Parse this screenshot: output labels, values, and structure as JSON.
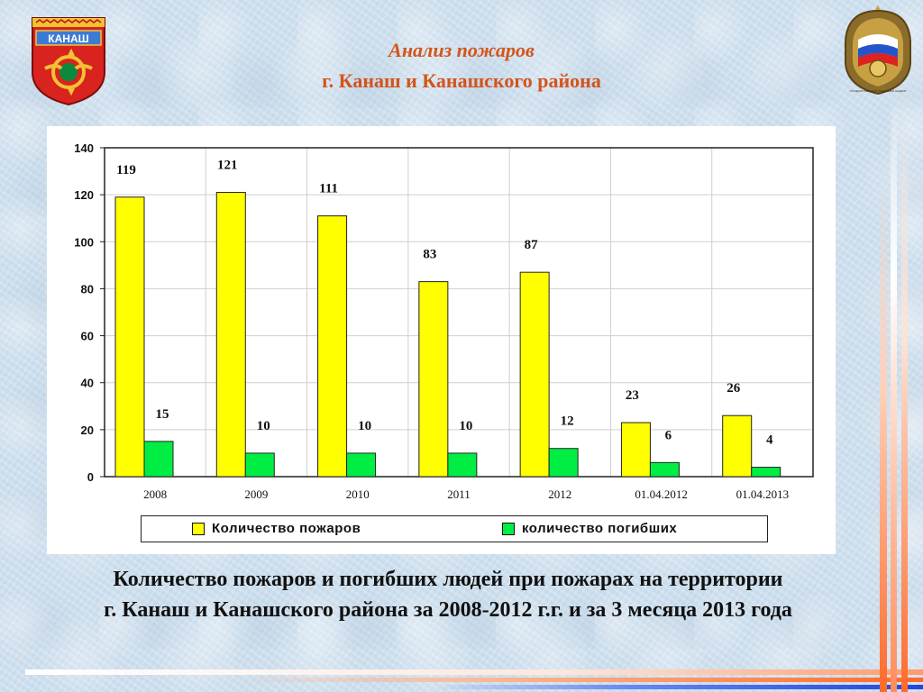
{
  "header": {
    "title_line1": "Анализ пожаров",
    "title_line2": "г. Канаш и Канашского района"
  },
  "emblem_left": {
    "label": "КАНАШ"
  },
  "emblem_right": {
    "label": "ГОСУДАРСТВЕННЫЙ ПОЖАРНЫЙ НАДЗОР"
  },
  "colors": {
    "title": "#d4541a",
    "bar_fires": "#ffff00",
    "bar_deaths": "#00ee44",
    "stripe_orange": "#ff6a2a",
    "stripe_blue": "#2244dd"
  },
  "legend": {
    "fires": "Количество пожаров",
    "deaths": "количество погибших"
  },
  "caption": {
    "line1": "Количество пожаров и погибших людей при пожарах на территории",
    "line2": "г. Канаш и Канашского района за 2008-2012 г.г. и за 3 месяца 2013 года"
  },
  "chart_data": {
    "type": "bar",
    "categories": [
      "2008",
      "2009",
      "2010",
      "2011",
      "2012",
      "01.04.2012",
      "01.04.2013"
    ],
    "series": [
      {
        "name": "Количество пожаров",
        "values": [
          119,
          121,
          111,
          83,
          87,
          23,
          26
        ]
      },
      {
        "name": "количество погибших",
        "values": [
          15,
          10,
          10,
          10,
          12,
          6,
          4
        ]
      }
    ],
    "ylim": [
      0,
      140
    ],
    "yticks": [
      0,
      20,
      40,
      60,
      80,
      100,
      120,
      140
    ],
    "grid": true,
    "legend_position": "bottom"
  }
}
